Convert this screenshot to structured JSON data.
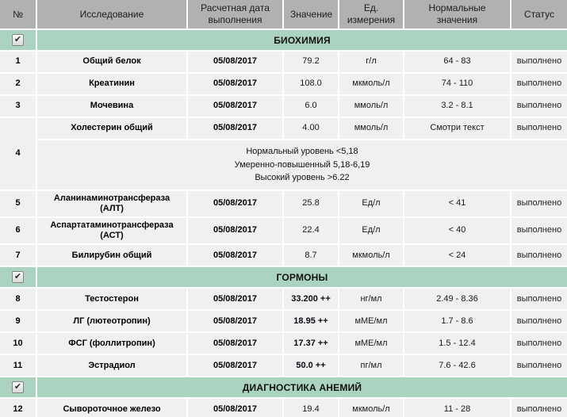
{
  "header": {
    "num": "№",
    "test": "Исследование",
    "date": "Расчетная дата выполнения",
    "value": "Значение",
    "unit": "Ед. измерения",
    "normal": "Нормальные значения",
    "status": "Статус"
  },
  "icons": {
    "checkbox_check": "✔"
  },
  "colors": {
    "header_bg": "#b1b1b1",
    "section_bg": "#aad4c0",
    "row_bg": "#f0f0f0",
    "gridline": "#ffffff"
  },
  "sections": [
    {
      "title": "БИОХИМИЯ",
      "checked": true
    },
    {
      "title": "ГОРМОНЫ",
      "checked": true
    },
    {
      "title": "ДИАГНОСТИКА АНЕМИЙ",
      "checked": true
    }
  ],
  "cholesterol_note": {
    "line1": "Нормальный уровень <5,18",
    "line2": "Умеренно-повышенный 5,18-6,19",
    "line3": "Высокий уровень >6.22"
  },
  "rows": [
    {
      "num": "1",
      "test": "Общий белок",
      "date": "05/08/2017",
      "value": "79.2",
      "unit": "г/л",
      "normal": "64 - 83",
      "status": "выполнено"
    },
    {
      "num": "2",
      "test": "Креатинин",
      "date": "05/08/2017",
      "value": "108.0",
      "unit": "мкмоль/л",
      "normal": "74 - 110",
      "status": "выполнено"
    },
    {
      "num": "3",
      "test": "Мочевина",
      "date": "05/08/2017",
      "value": "6.0",
      "unit": "ммоль/л",
      "normal": "3.2 - 8.1",
      "status": "выполнено"
    },
    {
      "num": "4",
      "test": "Холестерин общий",
      "date": "05/08/2017",
      "value": "4.00",
      "unit": "ммоль/л",
      "normal": "Смотри текст",
      "status": "выполнено"
    },
    {
      "num": "5",
      "test": "Аланинаминотрансфераза (АЛТ)",
      "date": "05/08/2017",
      "value": "25.8",
      "unit": "Ед/л",
      "normal": "< 41",
      "status": "выполнено"
    },
    {
      "num": "6",
      "test": "Аспартатаминотрансфераза (АСТ)",
      "date": "05/08/2017",
      "value": "22.4",
      "unit": "Ед/л",
      "normal": "< 40",
      "status": "выполнено"
    },
    {
      "num": "7",
      "test": "Билирубин общий",
      "date": "05/08/2017",
      "value": "8.7",
      "unit": "мкмоль/л",
      "normal": "< 24",
      "status": "выполнено"
    },
    {
      "num": "8",
      "test": "Тестостерон",
      "date": "05/08/2017",
      "value": "33.200 ++",
      "unit": "нг/мл",
      "normal": "2.49 - 8.36",
      "status": "выполнено"
    },
    {
      "num": "9",
      "test": "ЛГ (лютеотропин)",
      "date": "05/08/2017",
      "value": "18.95 ++",
      "unit": "мМЕ/мл",
      "normal": "1.7 - 8.6",
      "status": "выполнено"
    },
    {
      "num": "10",
      "test": "ФСГ (фоллитропин)",
      "date": "05/08/2017",
      "value": "17.37 ++",
      "unit": "мМЕ/мл",
      "normal": "1.5 - 12.4",
      "status": "выполнено"
    },
    {
      "num": "11",
      "test": "Эстрадиол",
      "date": "05/08/2017",
      "value": "50.0 ++",
      "unit": "пг/мл",
      "normal": "7.6 - 42.6",
      "status": "выполнено"
    },
    {
      "num": "12",
      "test": "Сывороточное железо",
      "date": "05/08/2017",
      "value": "19.4",
      "unit": "мкмоль/л",
      "normal": "11 - 28",
      "status": "выполнено"
    }
  ]
}
